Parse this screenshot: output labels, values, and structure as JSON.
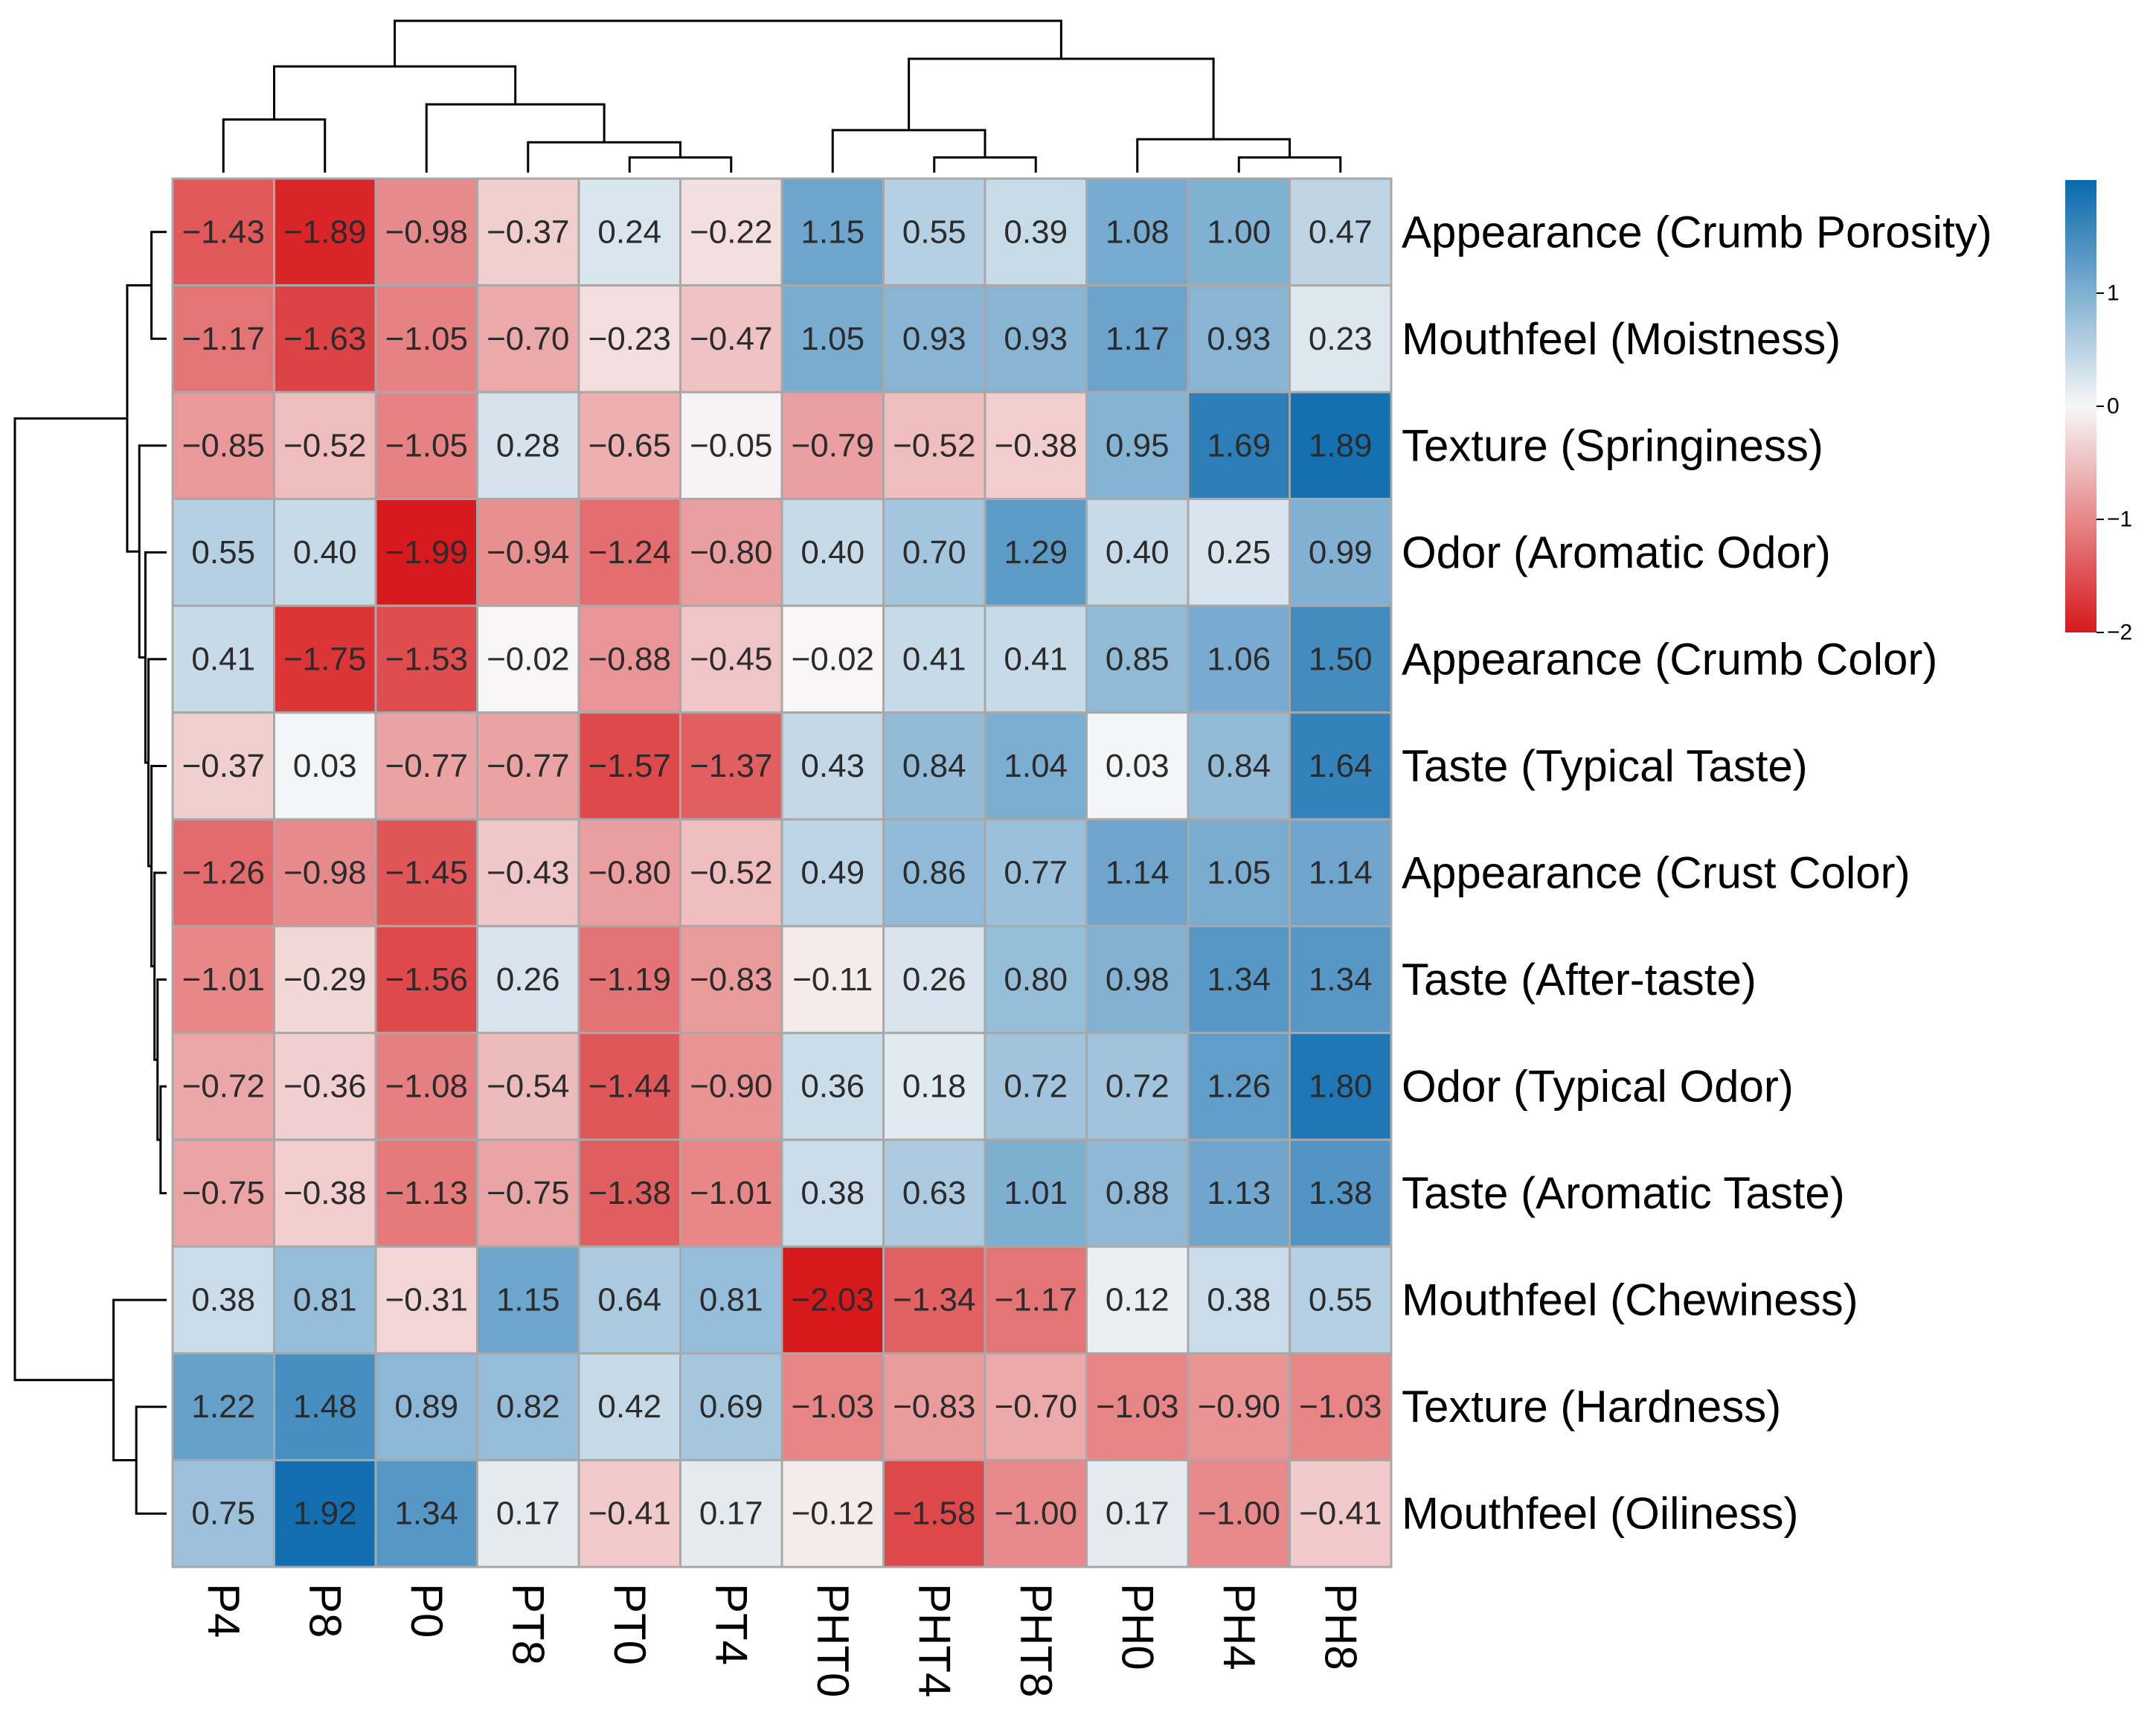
{
  "chart_data": {
    "type": "heatmap",
    "title": "",
    "xlabel": "",
    "ylabel": "",
    "columns": [
      "P4",
      "P8",
      "P0",
      "PT8",
      "PT0",
      "PT4",
      "PHT0",
      "PHT4",
      "PHT8",
      "PH0",
      "PH4",
      "PH8"
    ],
    "rows": [
      "Appearance (Crumb Porosity)",
      "Mouthfeel  (Moistness)",
      "Texture (Springiness)",
      "Odor (Aromatic Odor)",
      "Appearance (Crumb Color)",
      "Taste (Typical Taste)",
      "Appearance (Crust Color)",
      "Taste (After-taste)",
      "Odor (Typical Odor)",
      "Taste (Aromatic Taste)",
      "Mouthfeel (Chewiness)",
      "Texture (Hardness)",
      "Mouthfeel (Oiliness)"
    ],
    "values": [
      [
        -1.43,
        -1.89,
        -0.98,
        -0.37,
        0.24,
        -0.22,
        1.15,
        0.55,
        0.39,
        1.08,
        1.0,
        0.47
      ],
      [
        -1.17,
        -1.63,
        -1.05,
        -0.7,
        -0.23,
        -0.47,
        1.05,
        0.93,
        0.93,
        1.17,
        0.93,
        0.23
      ],
      [
        -0.85,
        -0.52,
        -1.05,
        0.28,
        -0.65,
        -0.05,
        -0.79,
        -0.52,
        -0.38,
        0.95,
        1.69,
        1.89
      ],
      [
        0.55,
        0.4,
        -1.99,
        -0.94,
        -1.24,
        -0.8,
        0.4,
        0.7,
        1.29,
        0.4,
        0.25,
        0.99
      ],
      [
        0.41,
        -1.75,
        -1.53,
        -0.02,
        -0.88,
        -0.45,
        -0.02,
        0.41,
        0.41,
        0.85,
        1.06,
        1.5
      ],
      [
        -0.37,
        0.03,
        -0.77,
        -0.77,
        -1.57,
        -1.37,
        0.43,
        0.84,
        1.04,
        0.03,
        0.84,
        1.64
      ],
      [
        -1.26,
        -0.98,
        -1.45,
        -0.43,
        -0.8,
        -0.52,
        0.49,
        0.86,
        0.77,
        1.14,
        1.05,
        1.14
      ],
      [
        -1.01,
        -0.29,
        -1.56,
        0.26,
        -1.19,
        -0.83,
        -0.11,
        0.26,
        0.8,
        0.98,
        1.34,
        1.34
      ],
      [
        -0.72,
        -0.36,
        -1.08,
        -0.54,
        -1.44,
        -0.9,
        0.36,
        0.18,
        0.72,
        0.72,
        1.26,
        1.8
      ],
      [
        -0.75,
        -0.38,
        -1.13,
        -0.75,
        -1.38,
        -1.01,
        0.38,
        0.63,
        1.01,
        0.88,
        1.13,
        1.38
      ],
      [
        0.38,
        0.81,
        -0.31,
        1.15,
        0.64,
        0.81,
        -2.03,
        -1.34,
        -1.17,
        0.12,
        0.38,
        0.55
      ],
      [
        1.22,
        1.48,
        0.89,
        0.82,
        0.42,
        0.69,
        -1.03,
        -0.83,
        -0.7,
        -1.03,
        -0.9,
        -1.03
      ],
      [
        0.75,
        1.92,
        1.34,
        0.17,
        -0.41,
        0.17,
        -0.12,
        -1.58,
        -1.0,
        0.17,
        -1.0,
        -0.41
      ]
    ],
    "color_scale": {
      "min": -2,
      "max": 2,
      "low_color": "#d7191c",
      "mid_color": "#f7f7f7",
      "high_color": "#0868ac",
      "ticks": [
        "1",
        "0",
        "−1",
        "−2"
      ]
    },
    "grid": true,
    "legend": "right",
    "row_dendrogram": "left",
    "column_dendrogram": "top"
  }
}
